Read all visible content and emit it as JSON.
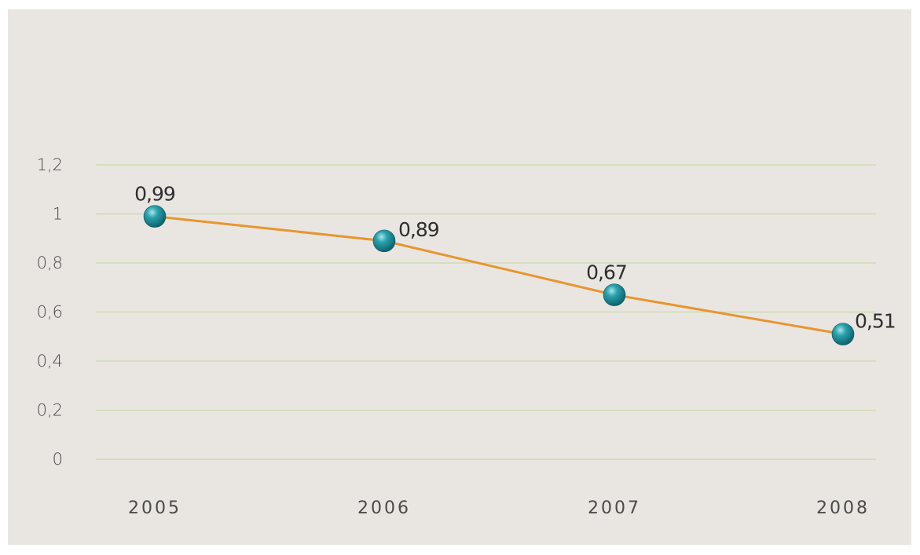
{
  "chart_data": {
    "type": "line",
    "categories": [
      "2005",
      "2006",
      "2007",
      "2008"
    ],
    "series": [
      {
        "values": [
          0.99,
          0.89,
          0.67,
          0.51
        ],
        "data_labels": [
          "0,99",
          "0,89",
          "0,67",
          "0,51"
        ]
      }
    ],
    "y_ticks": [
      0,
      0.2,
      0.4,
      0.6,
      0.8,
      1,
      1.2
    ],
    "y_tick_labels": [
      "0",
      "0,2",
      "0,4",
      "0,6",
      "0,8",
      "1",
      "1,2"
    ],
    "ylim": [
      0,
      1.2
    ],
    "grid": true,
    "legend": "none",
    "colors": {
      "background": "#e9e6e2",
      "gridline": "#c9d9a8",
      "line": "#e8952e",
      "marker": "#1d8a96",
      "marker_highlight": "#7fd3da"
    }
  }
}
